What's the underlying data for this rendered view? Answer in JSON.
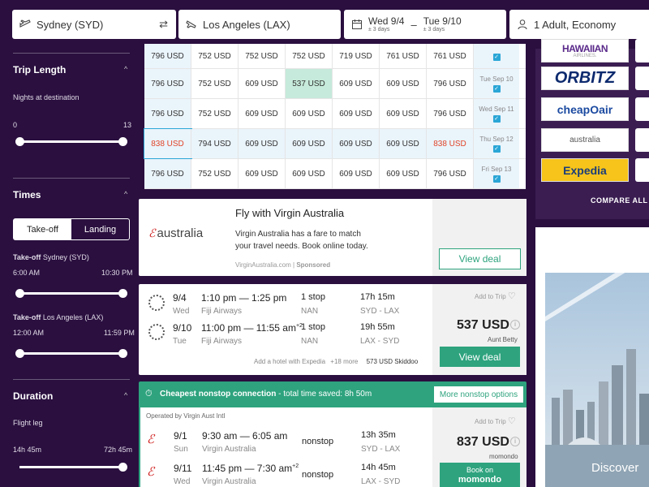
{
  "search": {
    "origin": "Sydney (SYD)",
    "destination": "Los Angeles (LAX)",
    "depart": "Wed 9/4",
    "depart_flex": "± 3 days",
    "dash": "–",
    "return": "Tue 9/10",
    "return_flex": "± 3 days",
    "travelers": "1 Adult, Economy"
  },
  "sidebar": {
    "trip_length": "Trip Length",
    "nights_label": "Nights at destination",
    "nights_min": "0",
    "nights_max": "13",
    "nights_range": [
      0,
      13
    ],
    "times": "Times",
    "tab_takeoff": "Take-off",
    "tab_landing": "Landing",
    "takeoff_prefix": "Take-off",
    "takeoff_city1": "Sydney (SYD)",
    "t1_min": "6:00 AM",
    "t1_max": "10:30 PM",
    "takeoff_city2": "Los Angeles (LAX)",
    "t2_min": "12:00 AM",
    "t2_max": "11:59 PM",
    "duration": "Duration",
    "flight_leg": "Flight leg",
    "d_min": "14h 45m",
    "d_max": "72h 45m"
  },
  "grid": {
    "rows": [
      {
        "cells": [
          "796 USD",
          "752 USD",
          "752 USD",
          "752 USD",
          "719 USD",
          "761 USD",
          "761 USD"
        ],
        "date": ""
      },
      {
        "cells": [
          "796 USD",
          "752 USD",
          "609 USD",
          "537 USD",
          "609 USD",
          "609 USD",
          "796 USD"
        ],
        "date": "Tue Sep 10"
      },
      {
        "cells": [
          "796 USD",
          "752 USD",
          "609 USD",
          "609 USD",
          "609 USD",
          "609 USD",
          "796 USD"
        ],
        "date": "Wed Sep 11"
      },
      {
        "cells": [
          "838 USD",
          "794 USD",
          "609 USD",
          "609 USD",
          "609 USD",
          "609 USD",
          "838 USD"
        ],
        "date": "Thu Sep 12"
      },
      {
        "cells": [
          "796 USD",
          "752 USD",
          "609 USD",
          "609 USD",
          "609 USD",
          "609 USD",
          "796 USD"
        ],
        "date": "Fri Sep 13"
      }
    ],
    "check": "✓"
  },
  "ad": {
    "brand": "australia",
    "title": "Fly with Virgin Australia",
    "body": "Virgin Australia has a fare to match your travel needs. Book online today.",
    "source": "VirginAustralia.com",
    "sponsored": "Sponsored",
    "cta": "View deal"
  },
  "r1": {
    "date1": "9/4",
    "dow1": "Wed",
    "time1": "1:10 pm — 1:25 pm",
    "air1": "Fiji Airways",
    "stops1": "1 stop",
    "via1": "NAN",
    "dur1": "17h 15m",
    "route1": "SYD - LAX",
    "date2": "9/10",
    "dow2": "Tue",
    "time2": "11:00 pm — 11:55 am",
    "plus2": "+2",
    "air2": "Fiji Airways",
    "stops2": "1 stop",
    "via2": "NAN",
    "dur2": "19h 55m",
    "route2": "LAX - SYD",
    "hotel": "Add a hotel with Expedia",
    "more": "+18 more",
    "alt_price": "573 USD",
    "alt_site": "Skiddoo",
    "add": "Add to Trip",
    "price": "537 USD",
    "site": "Aunt Betty",
    "cta": "View deal"
  },
  "nonstop": {
    "banner": "Cheapest nonstop connection",
    "saved": "- total time saved: 8h 50m",
    "more": "More nonstop options",
    "operated": "Operated by Virgin Aust Intl",
    "date1": "9/1",
    "dow1": "Sun",
    "time1": "9:30 am — 6:05 am",
    "air1": "Virgin Australia",
    "stops1": "nonstop",
    "dur1": "13h 35m",
    "route1": "SYD - LAX",
    "date2": "9/11",
    "dow2": "Wed",
    "time2": "11:45 pm — 7:30 am",
    "plus2": "+2",
    "air2": "Virgin Australia",
    "stops2": "nonstop",
    "dur2": "14h 45m",
    "route2": "LAX - SYD",
    "add": "Add to Trip",
    "price": "837 USD",
    "site": "momondo",
    "cta1": "Book on",
    "cta2": "momondo"
  },
  "right": {
    "logos": [
      "HAWAIIAN",
      "ORBITZ",
      "cheapOair",
      "australia",
      "Expedia"
    ],
    "hawaiian_sub": "AIRLINES.",
    "compare": "COMPARE ALL",
    "discover": "Discover",
    "stub": "C"
  },
  "colors": {
    "bg": "#2a0f3f",
    "accent": "#2ea37e",
    "highlight": "#e0452a"
  }
}
